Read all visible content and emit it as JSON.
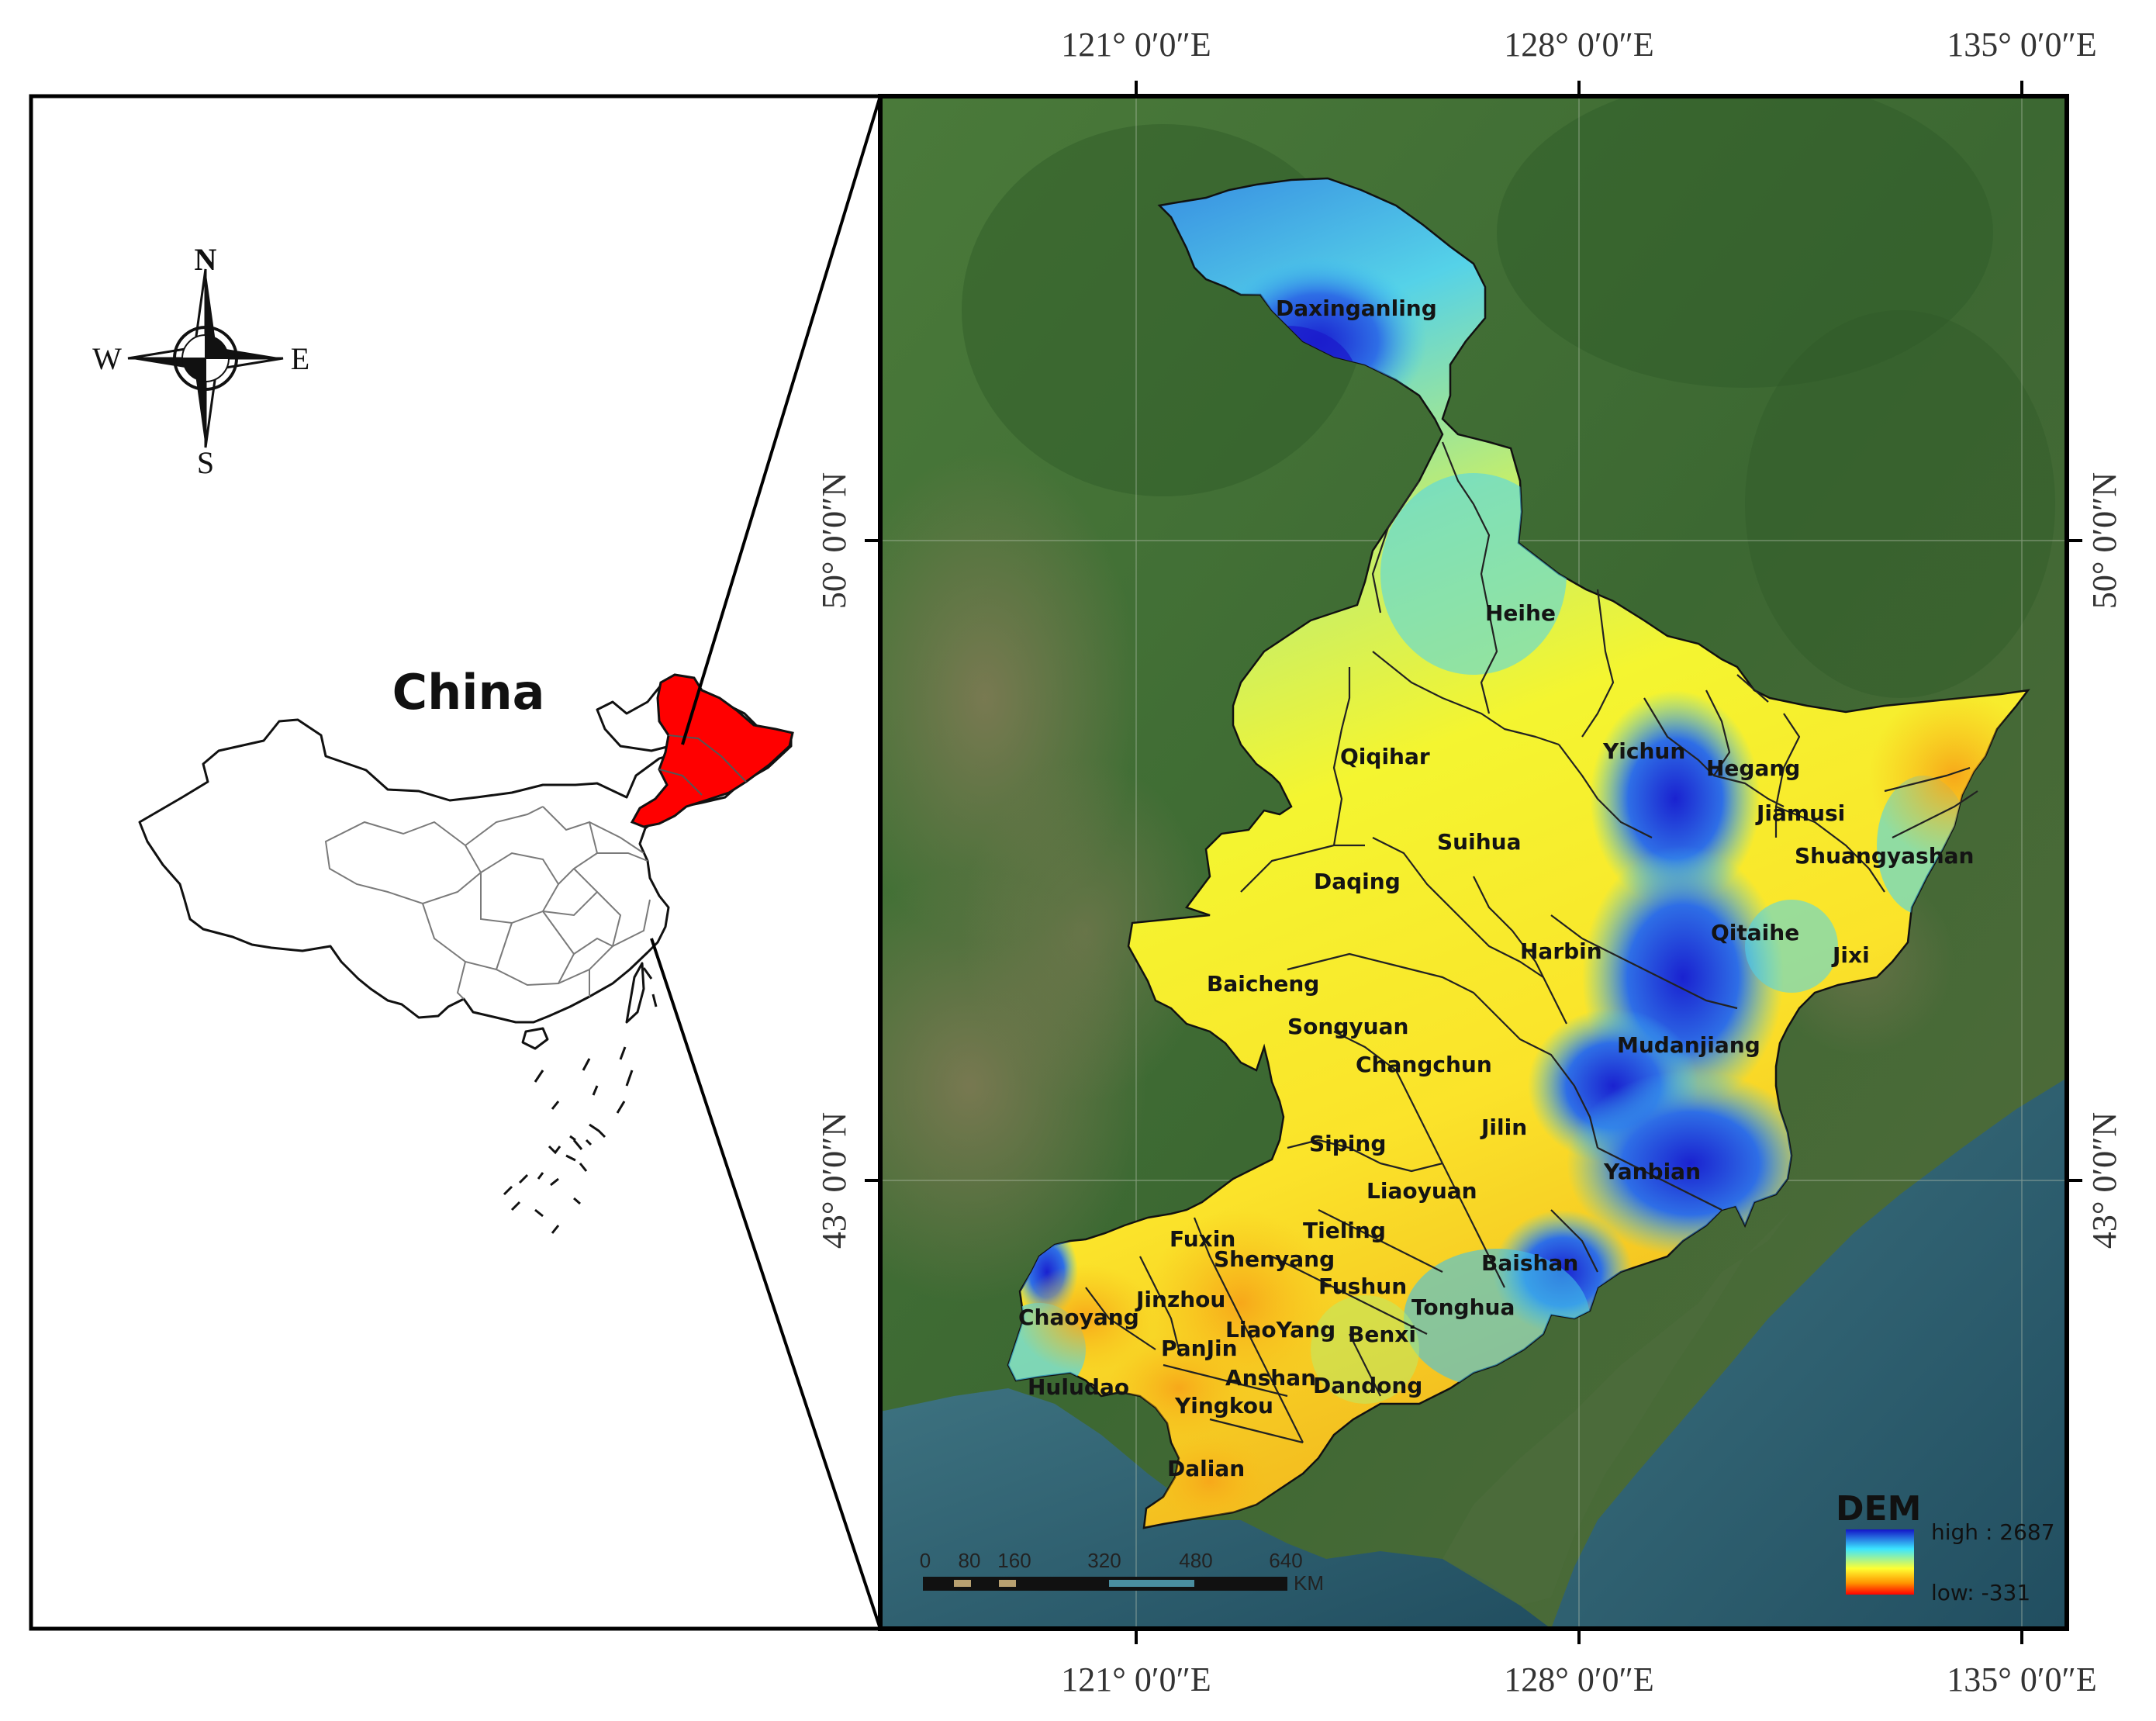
{
  "map": {
    "inset": {
      "country_label": "China",
      "highlight_color": "#ff0000",
      "compass": {
        "n": "N",
        "s": "S",
        "e": "E",
        "w": "W"
      }
    },
    "coordinates": {
      "longitudes": [
        "121° 0′0″E",
        "128° 0′0″E",
        "135° 0′0″E"
      ],
      "latitudes": [
        "50° 0′0″N",
        "43° 0′0″N"
      ]
    },
    "cities": [
      "Daxinganling",
      "Heihe",
      "Qiqihar",
      "Yichun",
      "Hegang",
      "Jiamusi",
      "Suihua",
      "Shuangyashan",
      "Daqing",
      "Qitaihe",
      "Harbin",
      "Jixi",
      "Baicheng",
      "Songyuan",
      "Mudanjiang",
      "Changchun",
      "Jilin",
      "Siping",
      "Yanbian",
      "Liaoyuan",
      "Tieling",
      "Fuxin",
      "Shenyang",
      "Baishan",
      "Fushun",
      "Jinzhou",
      "Tonghua",
      "Chaoyang",
      "LiaoYang",
      "Benxi",
      "PanJin",
      "Anshan",
      "Huludao",
      "Dandong",
      "Yingkou",
      "Dalian"
    ],
    "scale_bar": {
      "ticks": [
        "0",
        "80",
        "160",
        "320",
        "480",
        "640"
      ],
      "unit": "KM"
    },
    "legend": {
      "title": "DEM",
      "high_label": "high : 2687",
      "low_label": "low: -331",
      "ramp_colors": [
        "#1414c8",
        "#3ce6ff",
        "#ffff32",
        "#ff9600",
        "#ff0000"
      ]
    },
    "colors": {
      "frame": "#000000",
      "satellite_land": "#3e6a35",
      "sea": "#2d5f70"
    }
  }
}
